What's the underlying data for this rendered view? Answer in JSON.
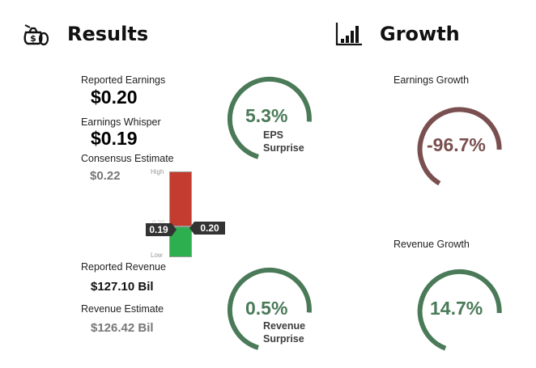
{
  "results": {
    "title": "Results",
    "icon": "money-bag-icon",
    "reported_earnings_label": "Reported Earnings",
    "reported_earnings_value": "$0.20",
    "earnings_whisper_label": "Earnings Whisper",
    "earnings_whisper_value": "$0.19",
    "consensus_label": "Consensus Estimate",
    "consensus_value": "$0.22",
    "reported_revenue_label": "Reported Revenue",
    "reported_revenue_value": "$127.10 Bil",
    "revenue_estimate_label": "Revenue Estimate",
    "revenue_estimate_value": "$126.42 Bil"
  },
  "range_bar": {
    "high_label": "High",
    "low_label": "Low",
    "whisper_tag": "0.19",
    "reported_tag": "0.20",
    "middle_tick_label": "0.20",
    "colors": {
      "upper": "#c0392b",
      "lower": "#27ae60"
    }
  },
  "eps_gauge": {
    "value": "5.3%",
    "line1": "EPS",
    "line2": "Surprise",
    "color": "#4a7a58"
  },
  "revenue_gauge": {
    "value": "0.5%",
    "line1": "Revenue",
    "line2": "Surprise",
    "color": "#4a7a58"
  },
  "growth": {
    "title": "Growth",
    "icon": "bar-chart-icon",
    "earnings_label": "Earnings Growth",
    "earnings_value": "-96.7%",
    "earnings_color": "#7a4f4f",
    "revenue_label": "Revenue Growth",
    "revenue_value": "14.7%",
    "revenue_color": "#4a7a58"
  }
}
